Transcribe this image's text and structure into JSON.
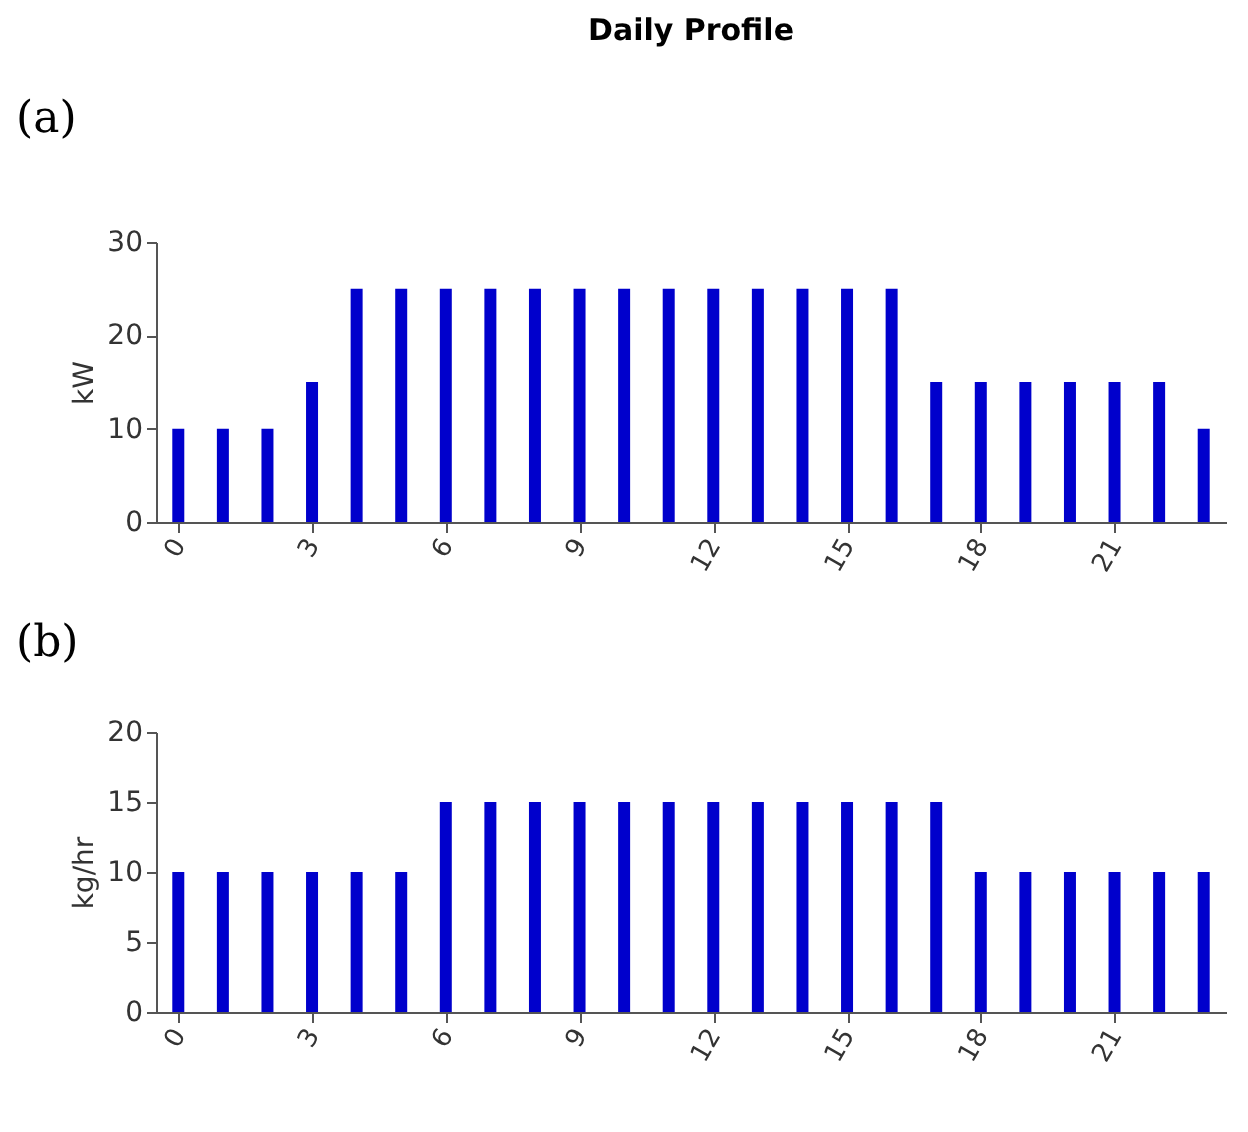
{
  "chart_data": [
    {
      "type": "bar",
      "title": "Daily Profile",
      "ylabel": "kW",
      "annotations": [
        "(a)"
      ],
      "x": [
        0,
        1,
        2,
        3,
        4,
        5,
        6,
        7,
        8,
        9,
        10,
        11,
        12,
        13,
        14,
        15,
        16,
        17,
        18,
        19,
        20,
        21,
        22,
        23
      ],
      "series": [
        {
          "color": "#0000cc",
          "values": [
            10,
            10,
            10,
            15,
            25,
            25,
            25,
            25,
            25,
            25,
            25,
            25,
            25,
            25,
            25,
            25,
            25,
            15,
            15,
            15,
            15,
            15,
            15,
            10
          ]
        }
      ],
      "xlim": [
        -0.5,
        23.5
      ],
      "xticks": [
        0,
        3,
        6,
        9,
        12,
        15,
        18,
        21
      ],
      "ylim": [
        0,
        30
      ],
      "yticks": [
        0,
        10,
        20,
        30
      ],
      "grid": false
    },
    {
      "type": "bar",
      "ylabel": "kg/hr",
      "annotations": [
        "(b)"
      ],
      "x": [
        0,
        1,
        2,
        3,
        4,
        5,
        6,
        7,
        8,
        9,
        10,
        11,
        12,
        13,
        14,
        15,
        16,
        17,
        18,
        19,
        20,
        21,
        22,
        23
      ],
      "series": [
        {
          "color": "#0000cc",
          "values": [
            10,
            10,
            10,
            10,
            10,
            10,
            15,
            15,
            15,
            15,
            15,
            15,
            15,
            15,
            15,
            15,
            15,
            15,
            10,
            10,
            10,
            10,
            10,
            10
          ]
        }
      ],
      "xlim": [
        -0.5,
        23.5
      ],
      "xticks": [
        0,
        3,
        6,
        9,
        12,
        15,
        18,
        21
      ],
      "ylim": [
        0,
        20
      ],
      "yticks": [
        0,
        5,
        10,
        15,
        20
      ],
      "grid": false
    }
  ]
}
